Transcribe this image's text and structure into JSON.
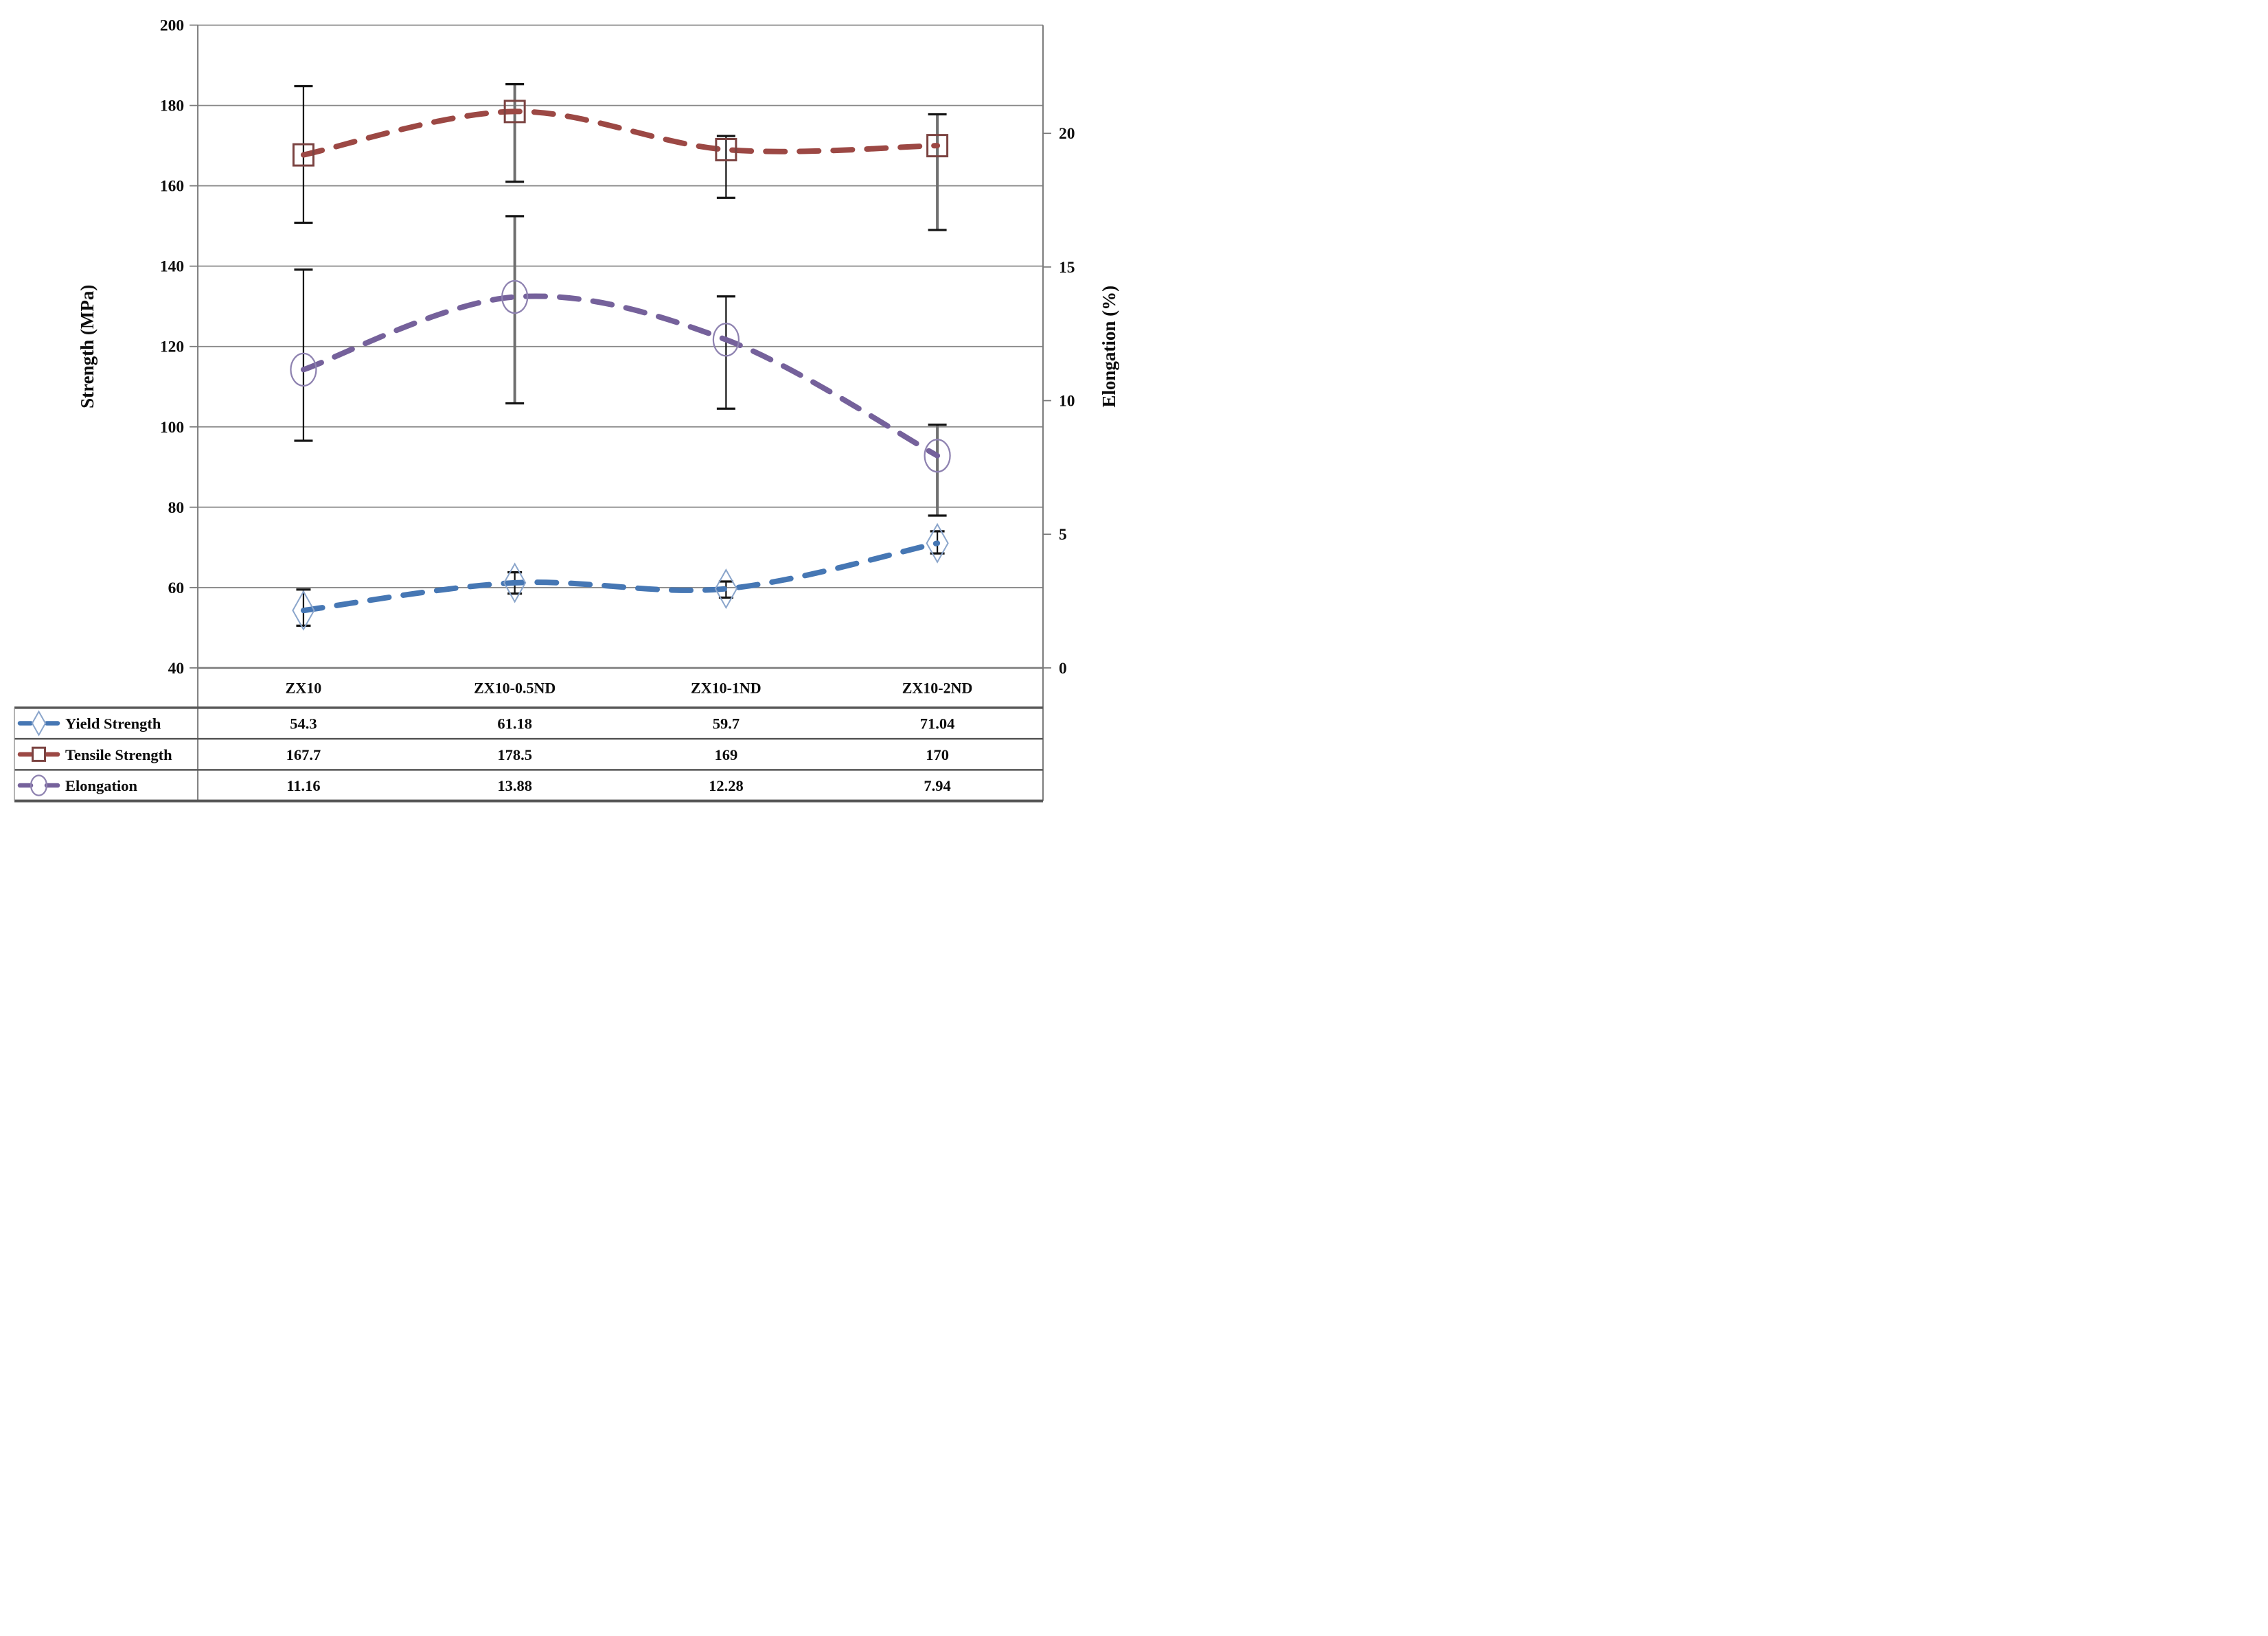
{
  "chart_data": {
    "type": "line",
    "title": "",
    "categories": [
      "ZX10",
      "ZX10-0.5ND",
      "ZX10-1ND",
      "ZX10-2ND"
    ],
    "series": [
      {
        "name": "Yield Strength",
        "axis": "left",
        "values": [
          54.3,
          61.18,
          59.7,
          71.04
        ],
        "error_lo": [
          50.5,
          58.5,
          57.5,
          68.5
        ],
        "error_hi": [
          59.5,
          63.8,
          61.5,
          74.0
        ],
        "color": "#4677b4",
        "marker": "diamond",
        "marker_color": "#8aa5cb",
        "errorbar_styles": [
          "black",
          "black",
          "black",
          "black"
        ]
      },
      {
        "name": "Tensile Strength",
        "axis": "left",
        "values": [
          167.7,
          178.5,
          169,
          170
        ],
        "error_lo": [
          150.8,
          161.0,
          157.0,
          149.0
        ],
        "error_hi": [
          184.8,
          185.3,
          172.4,
          177.8
        ],
        "color": "#9c4844",
        "marker": "square",
        "marker_color": "#7b4341",
        "errorbar_styles": [
          "black",
          "gray",
          "black",
          "gray"
        ]
      },
      {
        "name": "Elongation",
        "axis": "right",
        "values": [
          11.16,
          13.88,
          12.28,
          7.94
        ],
        "error_lo": [
          8.5,
          9.9,
          9.7,
          5.7
        ],
        "error_hi": [
          14.9,
          16.9,
          13.9,
          9.1
        ],
        "color": "#75619b",
        "marker": "circle",
        "marker_color": "#8e82b0",
        "errorbar_styles": [
          "black",
          "gray",
          "black",
          "gray"
        ]
      }
    ],
    "left_axis": {
      "label": "Strength (MPa)",
      "min": 40,
      "max": 200,
      "step": 20,
      "ticks": [
        "200",
        "180",
        "160",
        "140",
        "120",
        "100",
        "80",
        "60",
        "40"
      ]
    },
    "right_axis": {
      "label": "Elongation (%)",
      "min": 0,
      "max": 24.05,
      "tick_values": [
        0,
        5,
        10,
        15,
        20
      ],
      "ticks": [
        "0",
        "5",
        "10",
        "15",
        "20"
      ]
    },
    "grid": "horizontal-major",
    "legend_position": "table-left",
    "table": {
      "rows": [
        {
          "label": "Yield Strength",
          "values": [
            "54.3",
            "61.18",
            "59.7",
            "71.04"
          ]
        },
        {
          "label": "Tensile Strength",
          "values": [
            "167.7",
            "178.5",
            "169",
            "170"
          ]
        },
        {
          "label": "Elongation",
          "values": [
            "11.16",
            "13.88",
            "12.28",
            "7.94"
          ]
        }
      ]
    }
  },
  "colors": {
    "gridline": "#878787",
    "axis_line": "#7a7a7a",
    "table_border_bold": "#555555",
    "table_border_light": "#9a9a9a",
    "errorbar_black": "#141414",
    "errorbar_gray": "#6f6f6f",
    "text": "#0d0d0d",
    "background": "#ffffff"
  }
}
